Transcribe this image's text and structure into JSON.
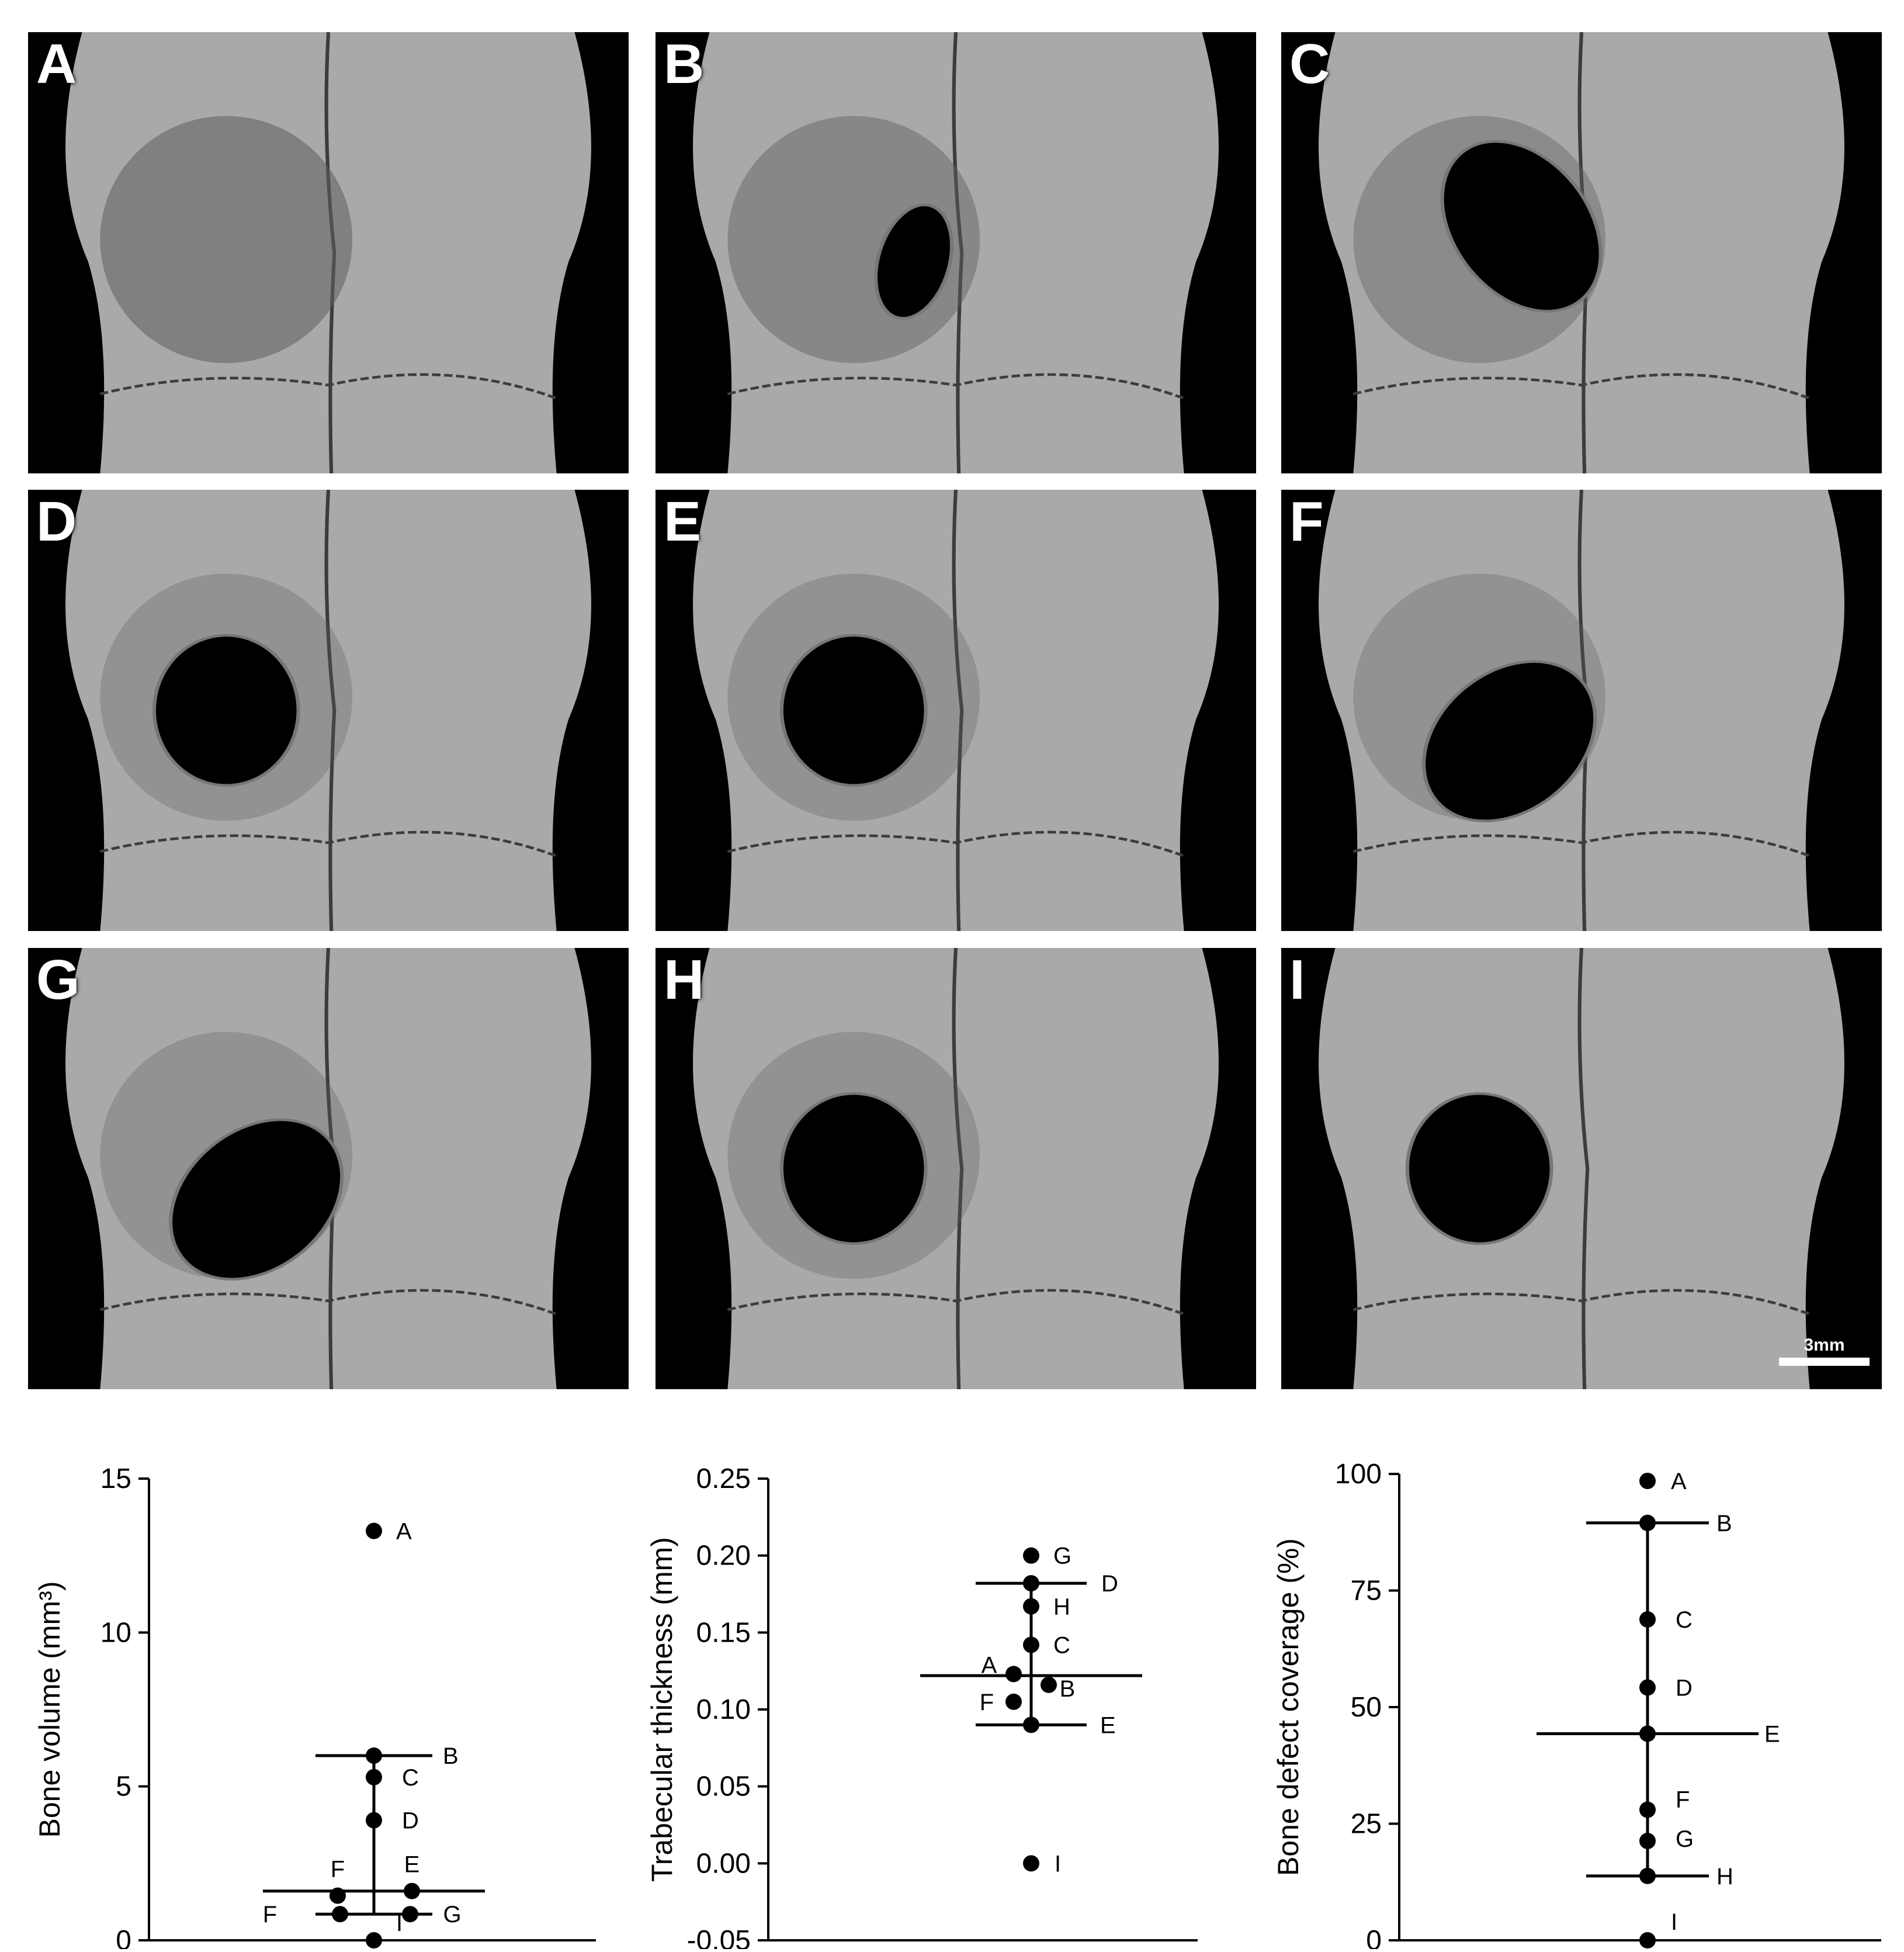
{
  "panels": [
    {
      "letter": "A",
      "hole": null,
      "regen": "full"
    },
    {
      "letter": "B",
      "hole": "small",
      "regen": "high"
    },
    {
      "letter": "C",
      "hole": "irregular",
      "regen": "mid"
    },
    {
      "letter": "D",
      "hole": "round",
      "regen": "low"
    },
    {
      "letter": "E",
      "hole": "round",
      "regen": "low"
    },
    {
      "letter": "F",
      "hole": "oval",
      "regen": "low"
    },
    {
      "letter": "G",
      "hole": "oval",
      "regen": "low"
    },
    {
      "letter": "H",
      "hole": "round",
      "regen": "low"
    },
    {
      "letter": "I",
      "hole": "round",
      "regen": "none"
    }
  ],
  "scale_bar": {
    "label": "3mm"
  },
  "colors": {
    "bone": "#a9a9a9",
    "background": "#000000",
    "marker": "#000000"
  },
  "chart_data": [
    {
      "type": "scatter",
      "title": "",
      "xlabel": "",
      "ylabel": "Bone volume (mm³)",
      "ylim": [
        0,
        15
      ],
      "yticks": [
        "0",
        "5",
        "10",
        "15"
      ],
      "points": [
        {
          "label": "A",
          "y": 13.3
        },
        {
          "label": "B",
          "y": 6.0
        },
        {
          "label": "C",
          "y": 5.3
        },
        {
          "label": "D",
          "y": 3.9
        },
        {
          "label": "E",
          "y": 1.6
        },
        {
          "label": "F",
          "y": 1.45
        },
        {
          "label": "F",
          "y": 0.85
        },
        {
          "label": "G",
          "y": 0.85
        },
        {
          "label": "I",
          "y": 0.0
        }
      ],
      "median": 1.6,
      "iqr": [
        0.85,
        6.0
      ]
    },
    {
      "type": "scatter",
      "title": "",
      "xlabel": "",
      "ylabel": "Trabecular thickness (mm)",
      "ylim": [
        -0.05,
        0.25
      ],
      "yticks": [
        "-0.05",
        "0.00",
        "0.05",
        "0.10",
        "0.15",
        "0.20",
        "0.25"
      ],
      "points": [
        {
          "label": "G",
          "y": 0.2
        },
        {
          "label": "D",
          "y": 0.182
        },
        {
          "label": "H",
          "y": 0.167
        },
        {
          "label": "C",
          "y": 0.142
        },
        {
          "label": "A",
          "y": 0.123
        },
        {
          "label": "B",
          "y": 0.116
        },
        {
          "label": "F",
          "y": 0.105
        },
        {
          "label": "E",
          "y": 0.09
        },
        {
          "label": "I",
          "y": 0.0
        }
      ],
      "median": 0.122,
      "iqr": [
        0.09,
        0.182
      ]
    },
    {
      "type": "scatter",
      "title": "",
      "xlabel": "",
      "ylabel": "Bone defect coverage (%)",
      "ylim": [
        0,
        100
      ],
      "yticks": [
        "0",
        "25",
        "50",
        "75",
        "100"
      ],
      "points": [
        {
          "label": "A",
          "y": 98.5
        },
        {
          "label": "B",
          "y": 89.5
        },
        {
          "label": "C",
          "y": 68.8
        },
        {
          "label": "D",
          "y": 54.2
        },
        {
          "label": "E",
          "y": 44.3
        },
        {
          "label": "F",
          "y": 28.0
        },
        {
          "label": "G",
          "y": 21.3
        },
        {
          "label": "H",
          "y": 13.8
        },
        {
          "label": "I",
          "y": 0.0
        }
      ],
      "median": 44.3,
      "iqr": [
        13.8,
        89.5
      ]
    }
  ]
}
